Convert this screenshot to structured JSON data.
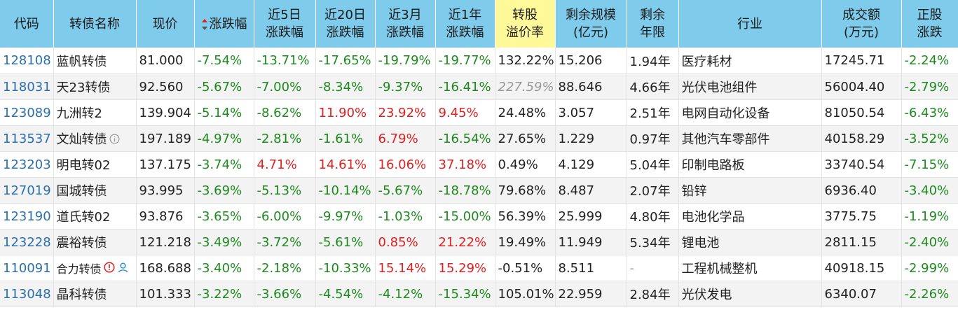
{
  "colors": {
    "header_bg": "#7ecbeb",
    "highlight_header": "#fff99a",
    "down": "#1c8a1c",
    "up": "#e02020",
    "code": "#2a6fb0"
  },
  "columns": [
    {
      "label": "代码"
    },
    {
      "label": "转债名称"
    },
    {
      "label": "现价"
    },
    {
      "label": "涨跌幅",
      "sorted": "desc"
    },
    {
      "line1": "近5日",
      "line2": "涨跌幅"
    },
    {
      "line1": "近20日",
      "line2": "涨跌幅"
    },
    {
      "line1": "近3月",
      "line2": "涨跌幅"
    },
    {
      "line1": "近1年",
      "line2": "涨跌幅"
    },
    {
      "line1": "转股",
      "line2": "溢价率",
      "highlighted": true
    },
    {
      "line1": "剩余规模",
      "line2": "(亿元)"
    },
    {
      "line1": "剩余",
      "line2": "年限"
    },
    {
      "label": "行业"
    },
    {
      "line1": "成交额",
      "line2": "(万元)"
    },
    {
      "line1": "正股",
      "line2": "涨跌"
    }
  ],
  "rows": [
    {
      "code": "128108",
      "name": "蓝帆转债",
      "price": "81.000",
      "chg": "-7.54%",
      "d5": "-13.71%",
      "d20": "-17.65%",
      "m3": "-19.79%",
      "y1": "-19.77%",
      "premium": "132.22%",
      "scale": "15.206",
      "years": "1.94年",
      "industry": "医疗耗材",
      "turnover": "17245.71",
      "stock_chg": "-2.24%"
    },
    {
      "code": "118031",
      "name": "天23转债",
      "price": "92.560",
      "chg": "-5.67%",
      "d5": "-7.00%",
      "d20": "-8.34%",
      "m3": "-9.37%",
      "y1": "-16.41%",
      "premium": "227.59%",
      "scale": "88.646",
      "years": "4.66年",
      "industry": "光伏电池组件",
      "turnover": "56004.40",
      "stock_chg": "-2.79%"
    },
    {
      "code": "123089",
      "name": "九洲转2",
      "price": "139.904",
      "chg": "-5.14%",
      "d5": "-8.62%",
      "d20": "11.90%",
      "m3": "23.92%",
      "y1": "9.45%",
      "premium": "24.48%",
      "scale": "3.057",
      "years": "2.51年",
      "industry": "电网自动化设备",
      "turnover": "81050.54",
      "stock_chg": "-6.43%"
    },
    {
      "code": "113537",
      "name": "文灿转债",
      "price": "197.189",
      "chg": "-4.97%",
      "d5": "-2.81%",
      "d20": "-1.61%",
      "m3": "6.79%",
      "y1": "-16.54%",
      "premium": "27.65%",
      "scale": "1.229",
      "years": "0.97年",
      "industry": "其他汽车零部件",
      "turnover": "40158.29",
      "stock_chg": "-3.52%",
      "info_icon": "info-icon"
    },
    {
      "code": "123203",
      "name": "明电转02",
      "price": "137.175",
      "chg": "-3.74%",
      "d5": "4.71%",
      "d20": "14.61%",
      "m3": "16.06%",
      "y1": "37.18%",
      "premium": "0.49%",
      "scale": "4.129",
      "years": "5.04年",
      "industry": "印制电路板",
      "turnover": "33740.54",
      "stock_chg": "-7.15%"
    },
    {
      "code": "127019",
      "name": "国城转债",
      "price": "93.995",
      "chg": "-3.69%",
      "d5": "-5.13%",
      "d20": "-10.14%",
      "m3": "-5.67%",
      "y1": "-18.78%",
      "premium": "79.68%",
      "scale": "8.487",
      "years": "2.07年",
      "industry": "铅锌",
      "turnover": "6936.40",
      "stock_chg": "-3.40%"
    },
    {
      "code": "123190",
      "name": "道氏转02",
      "price": "93.876",
      "chg": "-3.65%",
      "d5": "-6.00%",
      "d20": "-9.97%",
      "m3": "-1.03%",
      "y1": "-15.00%",
      "premium": "56.39%",
      "scale": "25.999",
      "years": "4.80年",
      "industry": "电池化学品",
      "turnover": "3775.75",
      "stock_chg": "-1.19%"
    },
    {
      "code": "123228",
      "name": "震裕转债",
      "price": "121.218",
      "chg": "-3.49%",
      "d5": "-3.72%",
      "d20": "-5.61%",
      "m3": "0.85%",
      "y1": "21.22%",
      "premium": "19.49%",
      "scale": "11.949",
      "years": "5.34年",
      "industry": "锂电池",
      "turnover": "2811.15",
      "stock_chg": "-2.40%"
    },
    {
      "code": "110091",
      "name": "合力转债",
      "price": "168.688",
      "chg": "-3.40%",
      "d5": "-2.18%",
      "d20": "-10.33%",
      "m3": "15.14%",
      "y1": "15.29%",
      "premium": "-0.51%",
      "scale": "8.511",
      "years": "-",
      "industry": "工程机械整机",
      "turnover": "40918.15",
      "stock_chg": "-2.99%",
      "warn_icon": "warning-icon",
      "user_icon": "user-icon"
    },
    {
      "code": "113048",
      "name": "晶科转债",
      "price": "101.333",
      "chg": "-3.22%",
      "d5": "-3.66%",
      "d20": "-4.54%",
      "m3": "-4.12%",
      "y1": "-15.34%",
      "premium": "105.01%",
      "scale": "22.959",
      "years": "2.84年",
      "industry": "光伏发电",
      "turnover": "6340.07",
      "stock_chg": "-2.26%"
    }
  ]
}
